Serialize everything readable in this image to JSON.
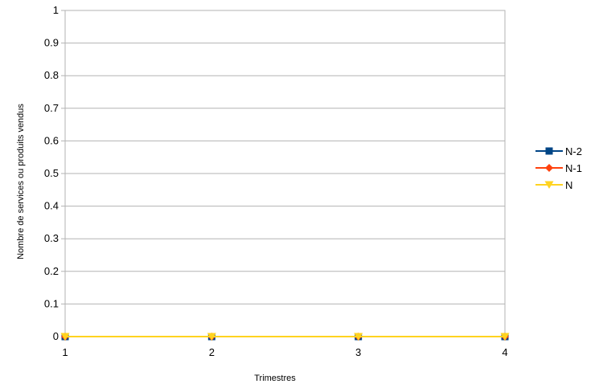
{
  "chart_data": {
    "type": "line",
    "title": "",
    "xlabel": "Trimestres",
    "ylabel": "Nombre de services ou produits vendus",
    "x": [
      "1",
      "2",
      "3",
      "4"
    ],
    "y_ticks": [
      "0",
      "0.1",
      "0.2",
      "0.3",
      "0.4",
      "0.5",
      "0.6",
      "0.7",
      "0.8",
      "0.9",
      "1"
    ],
    "ylim": [
      0,
      1
    ],
    "grid": true,
    "legend_position": "right",
    "series": [
      {
        "name": "N-2",
        "values": [
          0,
          0,
          0,
          0
        ],
        "color": "#004586",
        "marker": "square"
      },
      {
        "name": "N-1",
        "values": [
          0,
          0,
          0,
          0
        ],
        "color": "#ff420e",
        "marker": "diamond"
      },
      {
        "name": "N",
        "values": [
          0,
          0,
          0,
          0
        ],
        "color": "#ffd320",
        "marker": "triangle-down"
      }
    ]
  }
}
